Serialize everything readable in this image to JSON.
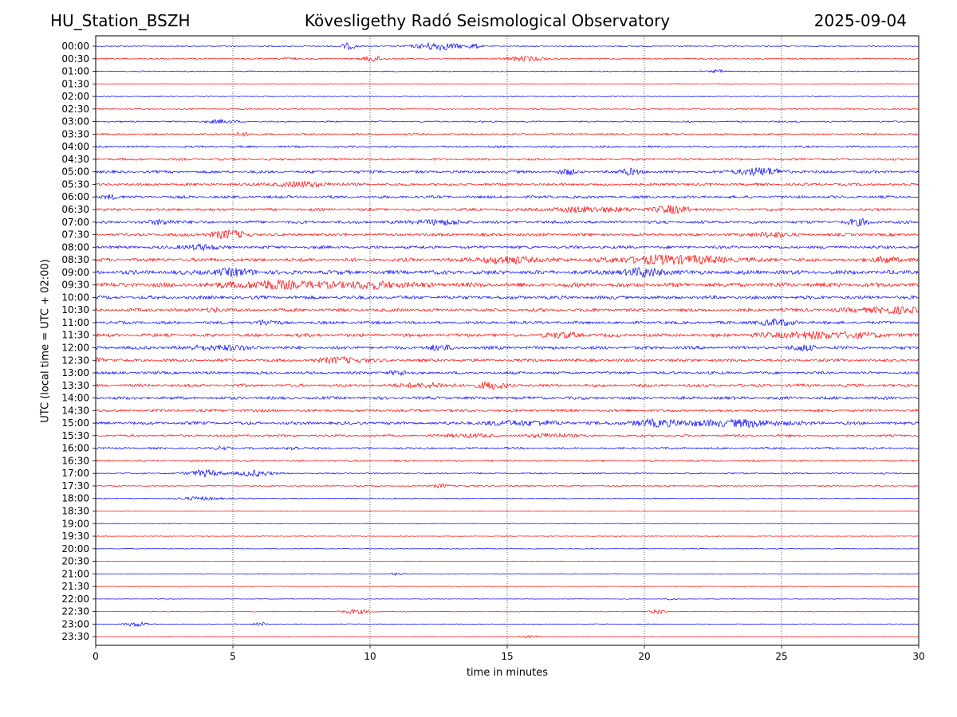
{
  "header": {
    "station": "HU_Station_BSZH",
    "observatory": "Kövesligethy Radó Seismological Observatory",
    "date": "2025-09-04"
  },
  "chart_data": {
    "type": "line",
    "title": "Kövesligethy Radó Seismological Observatory",
    "xlabel": "time in minutes",
    "ylabel": "UTC (local time = UTC + 02:00)",
    "xlim": [
      0,
      30
    ],
    "x_ticks": [
      0,
      5,
      10,
      15,
      20,
      25,
      30
    ],
    "x_tick_labels": [
      "0",
      "5",
      "10",
      "15",
      "20",
      "25",
      "30"
    ],
    "grid": "vertical dotted at x ticks",
    "colors": {
      "even_rows": "#0000ff",
      "odd_rows": "#ff0000",
      "grid": "#000000"
    },
    "rows": [
      {
        "label": "00:00",
        "amp": 0.25,
        "events": [
          {
            "t": 12.5,
            "a": 1.5,
            "w": 0.6
          },
          {
            "t": 9.2,
            "a": 1.2,
            "w": 0.2
          },
          {
            "t": 13.8,
            "a": 0.8,
            "w": 0.15
          }
        ]
      },
      {
        "label": "00:30",
        "amp": 0.25,
        "events": [
          {
            "t": 10.1,
            "a": 1.2,
            "w": 0.25
          },
          {
            "t": 15.7,
            "a": 0.9,
            "w": 0.5
          },
          {
            "t": 7.0,
            "a": 0.6,
            "w": 0.2
          }
        ]
      },
      {
        "label": "01:00",
        "amp": 0.2,
        "events": [
          {
            "t": 22.7,
            "a": 0.6,
            "w": 0.2
          }
        ]
      },
      {
        "label": "01:30",
        "amp": 0.15,
        "events": []
      },
      {
        "label": "02:00",
        "amp": 0.2,
        "events": []
      },
      {
        "label": "02:30",
        "amp": 0.25,
        "events": []
      },
      {
        "label": "03:00",
        "amp": 0.3,
        "events": [
          {
            "t": 4.5,
            "a": 0.6,
            "w": 0.4
          }
        ]
      },
      {
        "label": "03:30",
        "amp": 0.35,
        "events": [
          {
            "t": 5.3,
            "a": 0.7,
            "w": 0.2
          }
        ]
      },
      {
        "label": "04:00",
        "amp": 0.4,
        "events": []
      },
      {
        "label": "04:30",
        "amp": 0.45,
        "events": []
      },
      {
        "label": "05:00",
        "amp": 0.55,
        "events": [
          {
            "t": 24.2,
            "a": 1.4,
            "w": 0.6
          },
          {
            "t": 19.5,
            "a": 1.0,
            "w": 0.3
          },
          {
            "t": 17.2,
            "a": 1.0,
            "w": 0.2
          }
        ]
      },
      {
        "label": "05:30",
        "amp": 0.55,
        "events": [
          {
            "t": 7.5,
            "a": 0.8,
            "w": 0.8
          }
        ]
      },
      {
        "label": "06:00",
        "amp": 0.55,
        "events": [
          {
            "t": 0.5,
            "a": 0.8,
            "w": 0.2
          }
        ]
      },
      {
        "label": "06:30",
        "amp": 0.55,
        "events": [
          {
            "t": 21.0,
            "a": 1.3,
            "w": 0.5
          },
          {
            "t": 18.0,
            "a": 0.9,
            "w": 1.0
          }
        ]
      },
      {
        "label": "07:00",
        "amp": 0.6,
        "events": [
          {
            "t": 27.8,
            "a": 1.0,
            "w": 0.3
          },
          {
            "t": 12.5,
            "a": 0.9,
            "w": 0.6
          },
          {
            "t": 2.5,
            "a": 0.8,
            "w": 0.4
          }
        ]
      },
      {
        "label": "07:30",
        "amp": 0.6,
        "events": [
          {
            "t": 4.8,
            "a": 1.4,
            "w": 0.5
          },
          {
            "t": 24.6,
            "a": 1.0,
            "w": 0.4
          }
        ]
      },
      {
        "label": "08:00",
        "amp": 0.6,
        "events": [
          {
            "t": 3.8,
            "a": 1.0,
            "w": 0.4
          }
        ]
      },
      {
        "label": "08:30",
        "amp": 0.7,
        "events": [
          {
            "t": 21.0,
            "a": 1.5,
            "w": 1.5
          },
          {
            "t": 15.0,
            "a": 1.2,
            "w": 0.8
          },
          {
            "t": 28.8,
            "a": 1.2,
            "w": 0.3
          }
        ]
      },
      {
        "label": "09:00",
        "amp": 0.85,
        "events": [
          {
            "t": 20.0,
            "a": 1.3,
            "w": 0.6
          },
          {
            "t": 5.0,
            "a": 1.0,
            "w": 0.6
          }
        ]
      },
      {
        "label": "09:30",
        "amp": 0.9,
        "events": [
          {
            "t": 6.5,
            "a": 1.3,
            "w": 1.2
          },
          {
            "t": 10.0,
            "a": 1.0,
            "w": 1.0
          }
        ]
      },
      {
        "label": "10:00",
        "amp": 0.7,
        "events": []
      },
      {
        "label": "10:30",
        "amp": 0.65,
        "events": [
          {
            "t": 29.0,
            "a": 1.0,
            "w": 1.0
          },
          {
            "t": 4.3,
            "a": 0.8,
            "w": 0.2
          }
        ]
      },
      {
        "label": "11:00",
        "amp": 0.6,
        "events": [
          {
            "t": 24.8,
            "a": 1.0,
            "w": 0.5
          },
          {
            "t": 6.2,
            "a": 0.8,
            "w": 0.3
          }
        ]
      },
      {
        "label": "11:30",
        "amp": 0.65,
        "events": [
          {
            "t": 26.5,
            "a": 1.1,
            "w": 1.5
          },
          {
            "t": 17.0,
            "a": 0.8,
            "w": 0.5
          }
        ]
      },
      {
        "label": "12:00",
        "amp": 0.65,
        "events": [
          {
            "t": 25.8,
            "a": 1.0,
            "w": 0.3
          },
          {
            "t": 12.5,
            "a": 0.9,
            "w": 0.3
          },
          {
            "t": 4.5,
            "a": 0.8,
            "w": 0.8
          }
        ]
      },
      {
        "label": "12:30",
        "amp": 0.6,
        "events": [
          {
            "t": 0.1,
            "a": 1.1,
            "w": 0.15
          },
          {
            "t": 9.0,
            "a": 1.0,
            "w": 0.6
          }
        ]
      },
      {
        "label": "13:00",
        "amp": 0.55,
        "events": [
          {
            "t": 11.0,
            "a": 0.7,
            "w": 0.3
          }
        ]
      },
      {
        "label": "13:30",
        "amp": 0.6,
        "events": [
          {
            "t": 14.4,
            "a": 1.2,
            "w": 0.4
          },
          {
            "t": 12.0,
            "a": 0.8,
            "w": 0.6
          }
        ]
      },
      {
        "label": "14:00",
        "amp": 0.6,
        "events": []
      },
      {
        "label": "14:30",
        "amp": 0.55,
        "events": []
      },
      {
        "label": "15:00",
        "amp": 0.6,
        "events": [
          {
            "t": 23.5,
            "a": 1.2,
            "w": 1.2
          },
          {
            "t": 20.5,
            "a": 1.1,
            "w": 0.8
          },
          {
            "t": 15.5,
            "a": 0.8,
            "w": 1.0
          }
        ]
      },
      {
        "label": "15:30",
        "amp": 0.45,
        "events": [
          {
            "t": 16.6,
            "a": 0.8,
            "w": 0.5
          },
          {
            "t": 13.5,
            "a": 0.6,
            "w": 0.6
          }
        ]
      },
      {
        "label": "16:00",
        "amp": 0.4,
        "events": [
          {
            "t": 7.2,
            "a": 0.9,
            "w": 0.15
          },
          {
            "t": 4.6,
            "a": 0.7,
            "w": 0.15
          }
        ]
      },
      {
        "label": "16:30",
        "amp": 0.35,
        "events": []
      },
      {
        "label": "17:00",
        "amp": 0.3,
        "events": [
          {
            "t": 4.0,
            "a": 1.4,
            "w": 0.4
          },
          {
            "t": 5.8,
            "a": 1.2,
            "w": 0.4
          }
        ]
      },
      {
        "label": "17:30",
        "amp": 0.25,
        "events": [
          {
            "t": 12.6,
            "a": 0.8,
            "w": 0.2
          }
        ]
      },
      {
        "label": "18:00",
        "amp": 0.2,
        "events": [
          {
            "t": 3.8,
            "a": 0.6,
            "w": 0.6
          }
        ]
      },
      {
        "label": "18:30",
        "amp": 0.15,
        "events": []
      },
      {
        "label": "19:00",
        "amp": 0.15,
        "events": []
      },
      {
        "label": "19:30",
        "amp": 0.12,
        "events": []
      },
      {
        "label": "20:00",
        "amp": 0.15,
        "events": []
      },
      {
        "label": "20:30",
        "amp": 0.12,
        "events": []
      },
      {
        "label": "21:00",
        "amp": 0.15,
        "events": [
          {
            "t": 11.0,
            "a": 0.5,
            "w": 0.2
          }
        ]
      },
      {
        "label": "21:30",
        "amp": 0.12,
        "events": []
      },
      {
        "label": "22:00",
        "amp": 0.12,
        "events": [
          {
            "t": 21.0,
            "a": 0.5,
            "w": 0.1
          }
        ]
      },
      {
        "label": "22:30",
        "amp": 0.15,
        "events": [
          {
            "t": 9.5,
            "a": 0.8,
            "w": 0.4
          },
          {
            "t": 20.5,
            "a": 0.9,
            "w": 0.2
          }
        ]
      },
      {
        "label": "23:00",
        "amp": 0.15,
        "events": [
          {
            "t": 1.5,
            "a": 0.9,
            "w": 0.3
          },
          {
            "t": 6.0,
            "a": 0.8,
            "w": 0.15
          }
        ]
      },
      {
        "label": "23:30",
        "amp": 0.12,
        "events": [
          {
            "t": 15.8,
            "a": 0.6,
            "w": 0.2
          }
        ]
      }
    ]
  }
}
